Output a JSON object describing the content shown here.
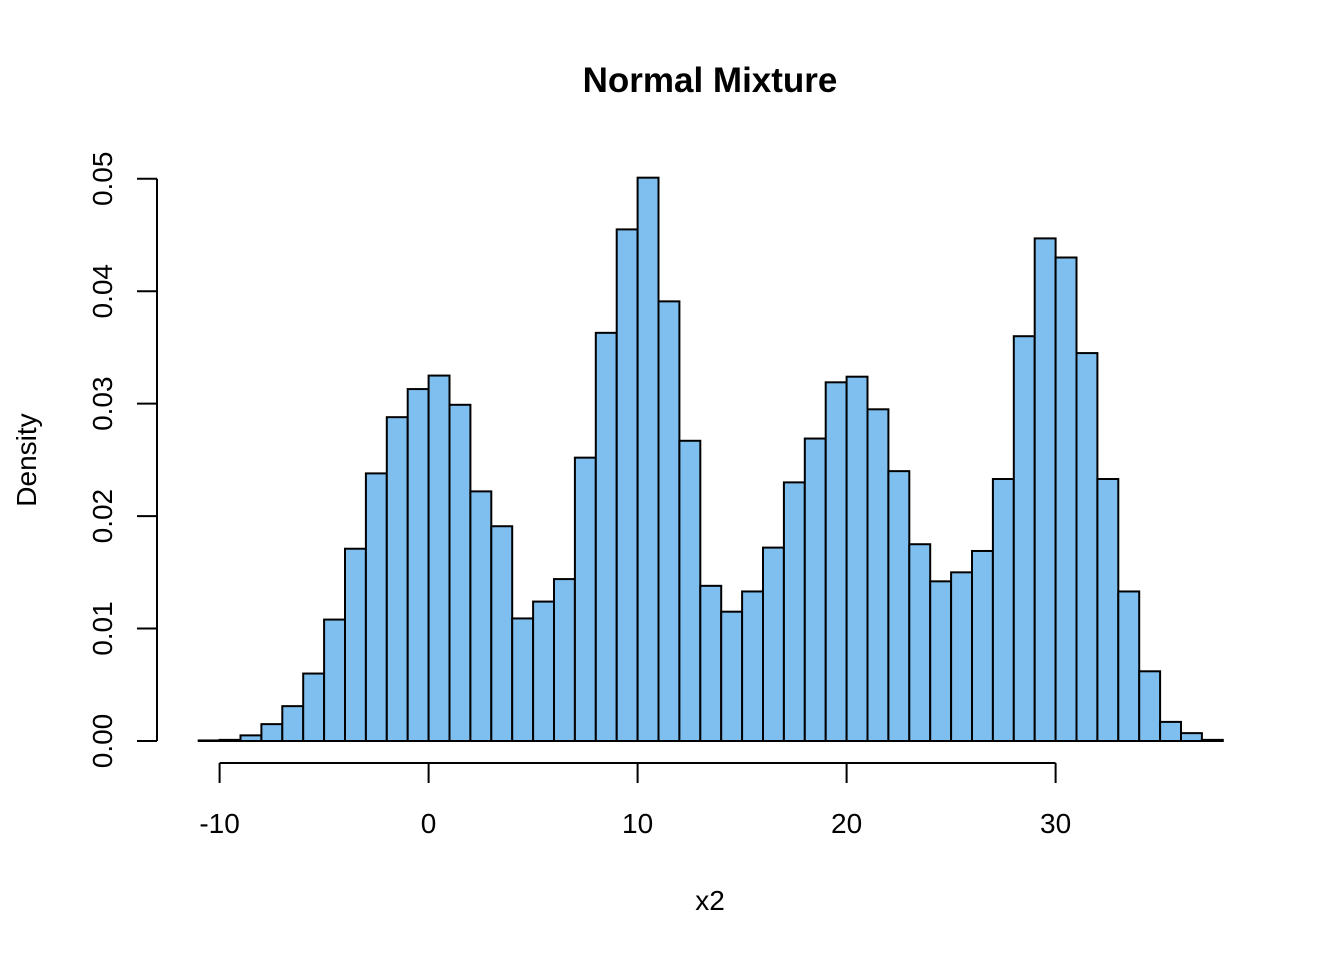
{
  "chart_data": {
    "type": "bar",
    "title": "Normal Mixture",
    "xlabel": "x2",
    "ylabel": "Density",
    "bar_color": "#7fbfef",
    "border_color": "#000000",
    "grid": false,
    "xlim": [
      -10,
      38
    ],
    "ylim": [
      0,
      0.05
    ],
    "x_ticks": [
      -10,
      0,
      10,
      20,
      30
    ],
    "x_tick_labels": [
      "-10",
      "0",
      "10",
      "20",
      "30"
    ],
    "y_ticks": [
      0,
      0.01,
      0.02,
      0.03,
      0.04,
      0.05
    ],
    "y_tick_labels": [
      "0.00",
      "0.01",
      "0.02",
      "0.03",
      "0.04",
      "0.05"
    ],
    "bin_width": 1,
    "bin_starts": [
      -11,
      -10,
      -9,
      -8,
      -7,
      -6,
      -5,
      -4,
      -3,
      -2,
      -1,
      0,
      1,
      2,
      3,
      4,
      5,
      6,
      7,
      8,
      9,
      10,
      11,
      12,
      13,
      14,
      15,
      16,
      17,
      18,
      19,
      20,
      21,
      22,
      23,
      24,
      25,
      26,
      27,
      28,
      29,
      30,
      31,
      32,
      33,
      34,
      35,
      36,
      37
    ],
    "values": [
      5e-05,
      0.0001,
      0.0005,
      0.0015,
      0.0031,
      0.006,
      0.0108,
      0.0171,
      0.0238,
      0.0288,
      0.0313,
      0.0325,
      0.0299,
      0.0222,
      0.0191,
      0.0109,
      0.0124,
      0.0144,
      0.0252,
      0.0363,
      0.0455,
      0.0501,
      0.0391,
      0.0267,
      0.0138,
      0.0115,
      0.0133,
      0.0172,
      0.023,
      0.0269,
      0.0319,
      0.0324,
      0.0295,
      0.024,
      0.0175,
      0.0142,
      0.015,
      0.0169,
      0.0233,
      0.036,
      0.0447,
      0.043,
      0.0345,
      0.0233,
      0.0133,
      0.0062,
      0.0017,
      0.0007,
      0.0001
    ]
  }
}
